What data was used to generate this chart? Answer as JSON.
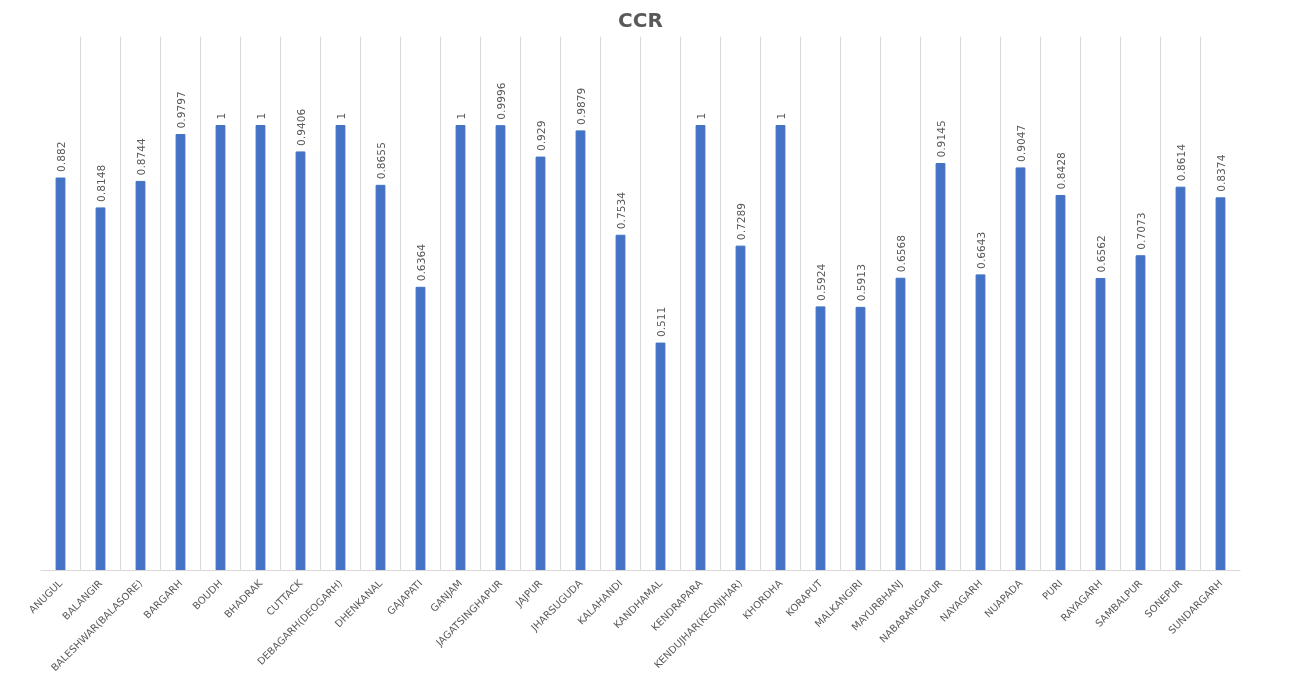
{
  "chart_data": {
    "type": "bar",
    "title": "CCR",
    "ylim": [
      0,
      1.2
    ],
    "tick_labels": "x",
    "color": "#4472c4",
    "grid": "x",
    "data_labels": true,
    "categories": [
      "ANUGUL",
      "BALANGIR",
      "BALESHWAR(BALASORE)",
      "BARGARH",
      "BOUDH",
      "BHADRAK",
      "CUTTACK",
      "DEBAGARH(DEOGARH)",
      "DHENKANAL",
      "GAJAPATI",
      "GANJAM",
      "JAGATSINGHAPUR",
      "JAJPUR",
      "JHARSUGUDA",
      "KALAHANDI",
      "KANDHAMAL",
      "KENDRAPARA",
      "KENDUJHAR(KEONJHAR)",
      "KHORDHA",
      "KORAPUT",
      "MALKANGIRI",
      "MAYURBHANJ",
      "NABARANGAPUR",
      "NAYAGARH",
      "NUAPADA",
      "PURI",
      "RAYAGARH",
      "SAMBALPUR",
      "SONEPUR",
      "SUNDARGARH"
    ],
    "values": [
      0.882,
      0.8148,
      0.8744,
      0.9797,
      1,
      1,
      0.9406,
      1,
      0.8655,
      0.6364,
      1,
      0.9996,
      0.929,
      0.9879,
      0.7534,
      0.511,
      1,
      0.7289,
      1,
      0.5924,
      0.5913,
      0.6568,
      0.9145,
      0.6643,
      0.9047,
      0.8428,
      0.6562,
      0.7073,
      0.8614,
      0.8374
    ]
  }
}
